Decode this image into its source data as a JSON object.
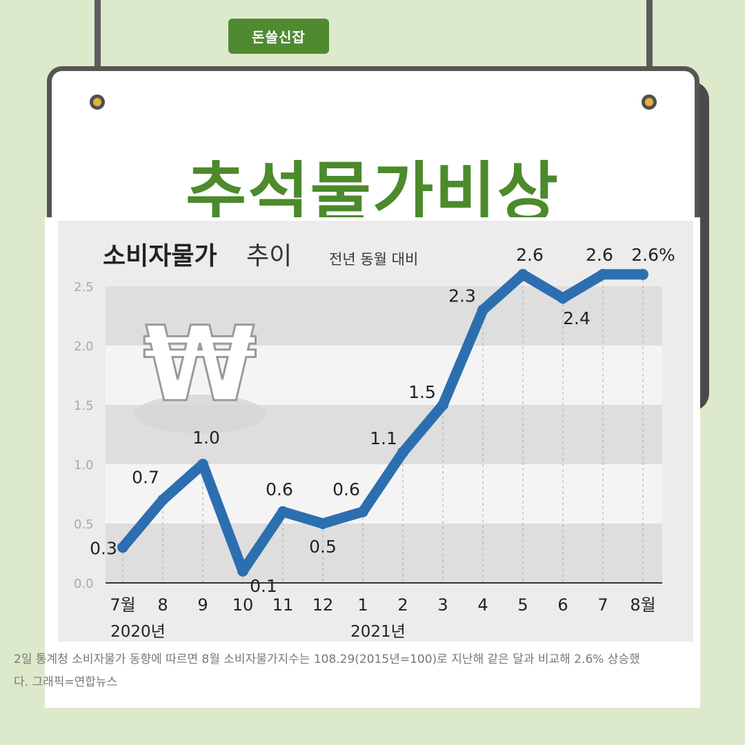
{
  "badge": {
    "label": "돈쓸신잡"
  },
  "headline": "추석물가비상",
  "chart_data": {
    "type": "line",
    "title": "소비자물가",
    "title_suffix": "추이",
    "subtitle": "전년 동월 대비",
    "categories": [
      "7월",
      "8",
      "9",
      "10",
      "11",
      "12",
      "1",
      "2",
      "3",
      "4",
      "5",
      "6",
      "7",
      "8월"
    ],
    "year_labels": [
      {
        "label": "2020년",
        "index": 0
      },
      {
        "label": "2021년",
        "index": 6
      }
    ],
    "values": [
      0.3,
      0.7,
      1.0,
      0.1,
      0.6,
      0.5,
      0.6,
      1.1,
      1.5,
      2.3,
      2.6,
      2.4,
      2.6,
      2.6
    ],
    "data_labels": [
      "0.3",
      "0.7",
      "1.0",
      "0.1",
      "0.6",
      "0.5",
      "0.6",
      "1.1",
      "1.5",
      "2.3",
      "2.6",
      "2.4",
      "2.6",
      "2.6%"
    ],
    "y_ticks": [
      "0.0",
      "0.5",
      "1.0",
      "1.5",
      "2.0",
      "2.5"
    ],
    "ylim": [
      0,
      2.5
    ],
    "grid": "horizontal bands",
    "decoration": "won-icon",
    "line_color": "#2c6fb0"
  },
  "caption": "2일 통계청 소비자물가 동향에 따르면 8월 소비자물가지수는 108.29(2015년=100)로 지난해 같은 달과 비교해 2.6% 상승했다. 그래픽=연합뉴스"
}
